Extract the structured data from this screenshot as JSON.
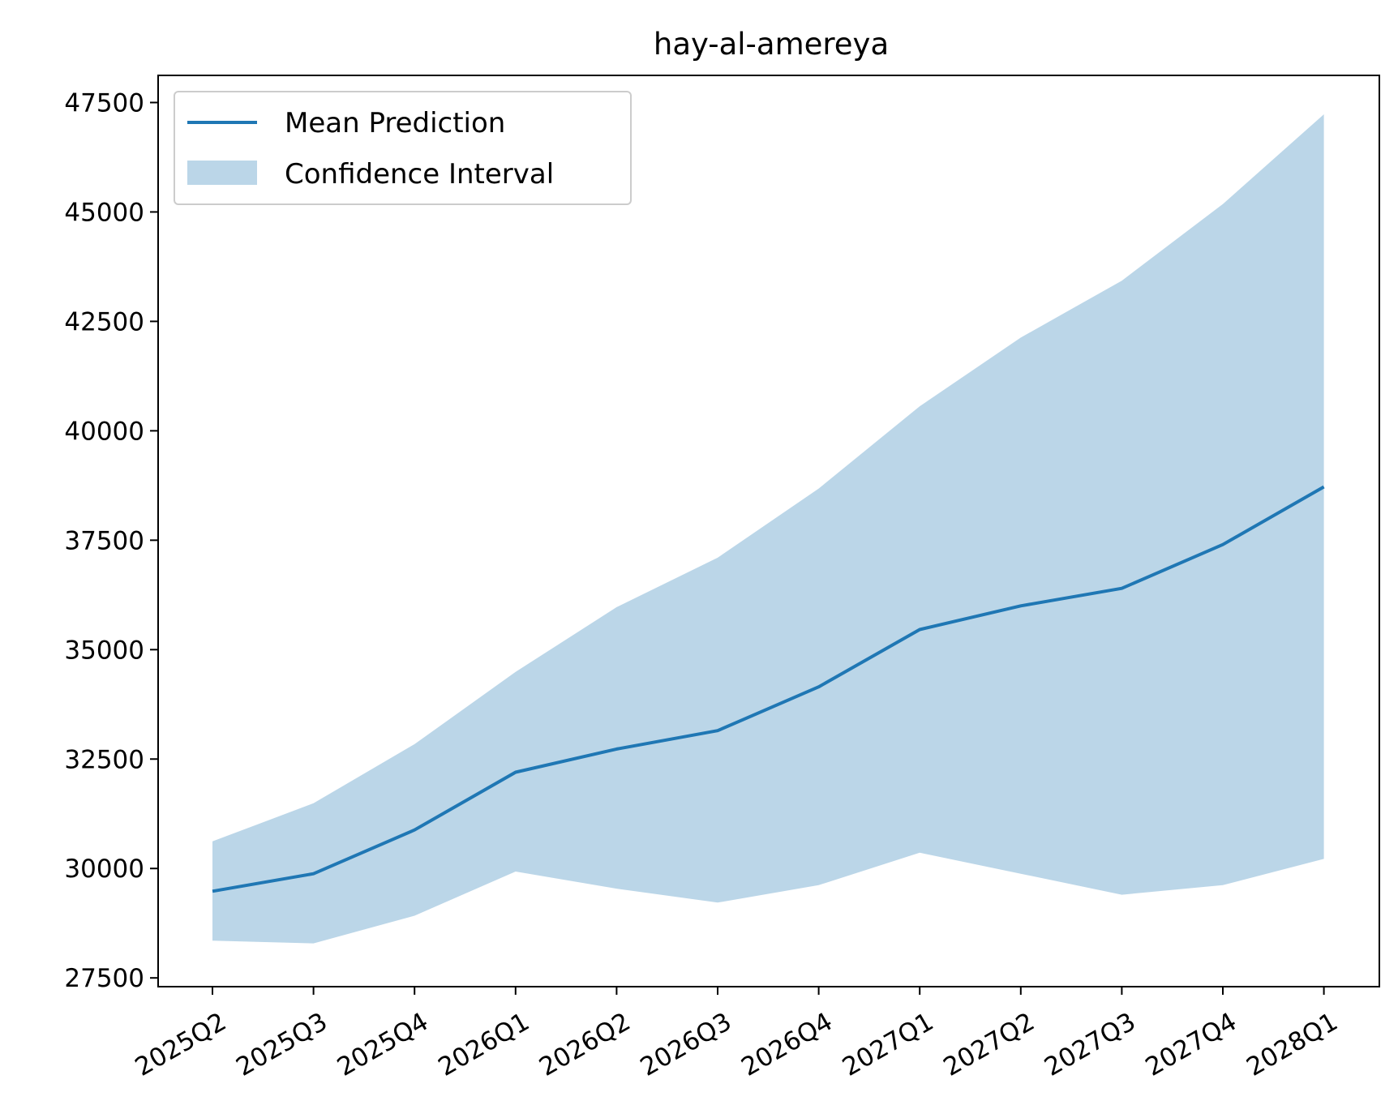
{
  "chart_data": {
    "type": "line",
    "title": "hay-al-amereya",
    "xlabel": "",
    "ylabel": "",
    "categories": [
      "2025Q2",
      "2025Q3",
      "2025Q4",
      "2026Q1",
      "2026Q2",
      "2026Q3",
      "2026Q4",
      "2027Q1",
      "2027Q2",
      "2027Q3",
      "2027Q4",
      "2028Q1"
    ],
    "series": [
      {
        "name": "Mean Prediction",
        "kind": "line",
        "color": "#1f77b4",
        "values": [
          29480,
          29880,
          30880,
          32200,
          32730,
          33150,
          34150,
          35460,
          36000,
          36400,
          37400,
          38720
        ]
      },
      {
        "name": "Confidence Interval",
        "kind": "band",
        "color": "#1f77b4",
        "lower": [
          28350,
          28290,
          28920,
          29930,
          29540,
          29220,
          29620,
          30360,
          29880,
          29400,
          29620,
          30220
        ],
        "upper": [
          30620,
          31490,
          32840,
          34490,
          35970,
          37100,
          38680,
          40560,
          42130,
          43430,
          45180,
          47230
        ]
      }
    ],
    "ylim": [
      27300,
      48120
    ],
    "yticks": [
      27500,
      30000,
      32500,
      35000,
      37500,
      40000,
      42500,
      45000,
      47500
    ],
    "grid": false,
    "legend_position": "upper-left",
    "legend": [
      "Mean Prediction",
      "Confidence Interval"
    ]
  }
}
